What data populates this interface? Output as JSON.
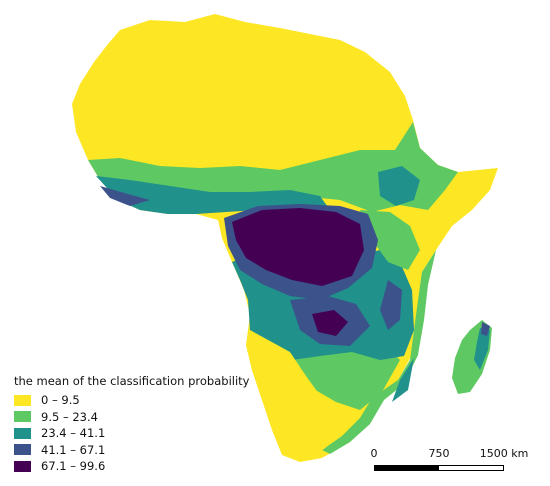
{
  "legend": {
    "title": "the mean of the classification probability",
    "classes": [
      {
        "label": "0 – 9.5",
        "color": "#fde725"
      },
      {
        "label": "9.5 – 23.4",
        "color": "#5ec962"
      },
      {
        "label": "23.4 – 41.1",
        "color": "#21918c"
      },
      {
        "label": "41.1 – 67.1",
        "color": "#3b528b"
      },
      {
        "label": "67.1 – 99.6",
        "color": "#440154"
      }
    ]
  },
  "scalebar": {
    "ticks": [
      "0",
      "750",
      "1500 km"
    ],
    "colors": [
      "#000000",
      "#ffffff"
    ]
  }
}
